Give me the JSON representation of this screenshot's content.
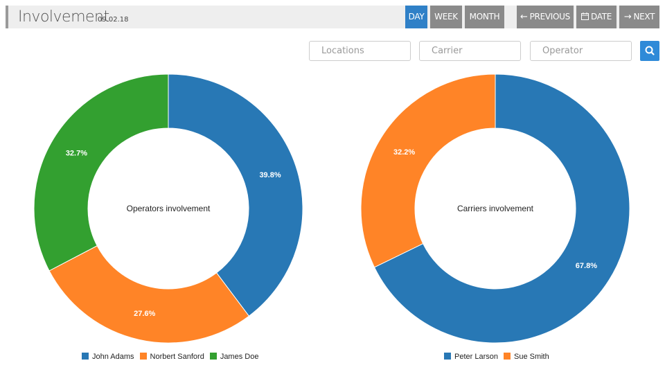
{
  "header": {
    "title": "Involvement",
    "date": "09.02.18",
    "buttons": {
      "day": "DAY",
      "week": "WEEK",
      "month": "MONTH",
      "previous": "PREVIOUS",
      "date": "DATE",
      "next": "NEXT"
    },
    "active_button": "day",
    "icons": {
      "previous": "arrow-left-icon",
      "date": "calendar-icon",
      "next": "arrow-right-icon",
      "search": "search-icon"
    }
  },
  "filters": {
    "locations_placeholder": "Locations",
    "carrier_placeholder": "Carrier",
    "operator_placeholder": "Operator"
  },
  "colors": {
    "blue": "#2878b5",
    "orange": "#ff8427",
    "green": "#33a030",
    "active_button": "#2f80c7",
    "button": "#8a8a8a"
  },
  "chart_data": [
    {
      "type": "pie",
      "donut": true,
      "title": "Operators involvement",
      "labels": [
        "John Adams",
        "Norbert Sanford",
        "James Doe"
      ],
      "values": [
        39.8,
        27.6,
        32.7
      ],
      "value_labels": [
        "39.8%",
        "27.6%",
        "32.7%"
      ],
      "colors": [
        "#2878b5",
        "#ff8427",
        "#33a030"
      ],
      "legend": "bottom"
    },
    {
      "type": "pie",
      "donut": true,
      "title": "Carriers involvement",
      "labels": [
        "Peter Larson",
        "Sue Smith"
      ],
      "values": [
        67.8,
        32.2
      ],
      "value_labels": [
        "67.8%",
        "32.2%"
      ],
      "colors": [
        "#2878b5",
        "#ff8427"
      ],
      "legend": "bottom"
    }
  ]
}
